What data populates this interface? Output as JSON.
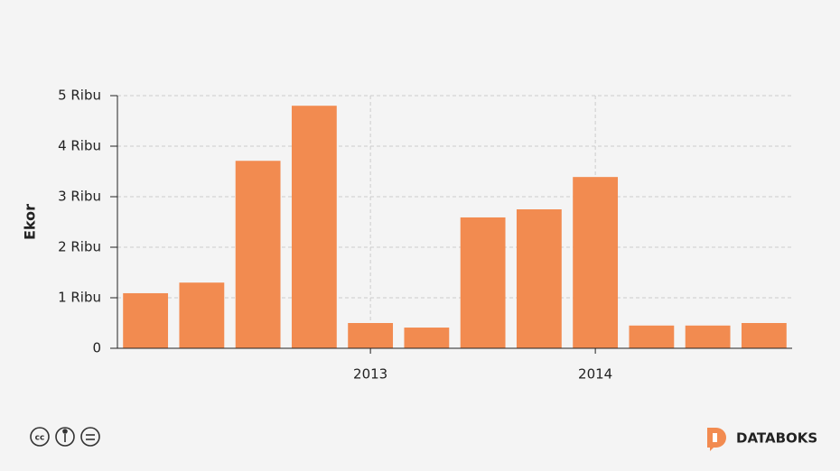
{
  "chart_data": {
    "type": "bar",
    "y_label": "Ekor",
    "categories": [
      null,
      null,
      null,
      null,
      "2013",
      null,
      null,
      null,
      "2014",
      null,
      null,
      null
    ],
    "values": [
      1090,
      1300,
      3710,
      4800,
      500,
      410,
      2590,
      2750,
      3390,
      450,
      450,
      500
    ],
    "color": "#f28b50",
    "ylim": [
      0,
      5000
    ],
    "yticks": [
      0,
      {
        "value": 1000,
        "label": "1 Ribu"
      },
      {
        "value": 2000,
        "label": "2 Ribu"
      },
      {
        "value": 3000,
        "label": "3 Ribu"
      },
      {
        "value": 4000,
        "label": "4 Ribu"
      },
      {
        "value": 5000,
        "label": "5 Ribu"
      }
    ],
    "grid": true
  },
  "footer": {
    "brand": "DATABOKS"
  }
}
